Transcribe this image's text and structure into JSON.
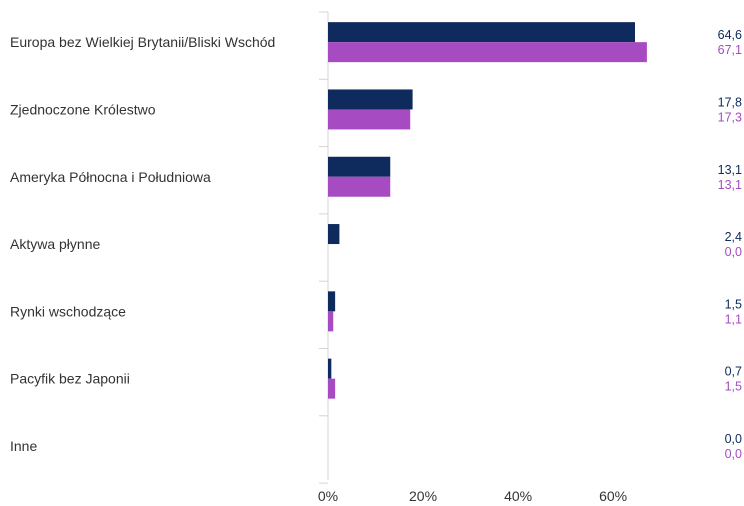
{
  "chart_data": {
    "type": "bar",
    "orientation": "horizontal",
    "categories": [
      "Europa bez Wielkiej Brytanii/Bliski Wschód",
      "Zjednoczone Królestwo",
      "Ameryka Północna i Południowa",
      "Aktywa płynne",
      "Rynki wschodzące",
      "Pacyfik bez Japonii",
      "Inne"
    ],
    "series": [
      {
        "color": "#0f2a5c",
        "values": [
          64.6,
          17.8,
          13.1,
          2.4,
          1.5,
          0.7,
          0.0
        ],
        "labels": [
          "64,6",
          "17,8",
          "13,1",
          "2,4",
          "1,5",
          "0,7",
          "0,0"
        ]
      },
      {
        "color": "#a64bc1",
        "values": [
          67.1,
          17.3,
          13.1,
          0.0,
          1.1,
          1.5,
          0.0
        ],
        "labels": [
          "67,1",
          "17,3",
          "13,1",
          "0,0",
          "1,1",
          "1,5",
          "0,0"
        ]
      }
    ],
    "xlim": [
      0,
      80
    ],
    "xticks": [
      0,
      20,
      40,
      60
    ],
    "xtick_labels": [
      "0%",
      "20%",
      "40%",
      "60%"
    ],
    "grid": false,
    "legend": "none"
  }
}
